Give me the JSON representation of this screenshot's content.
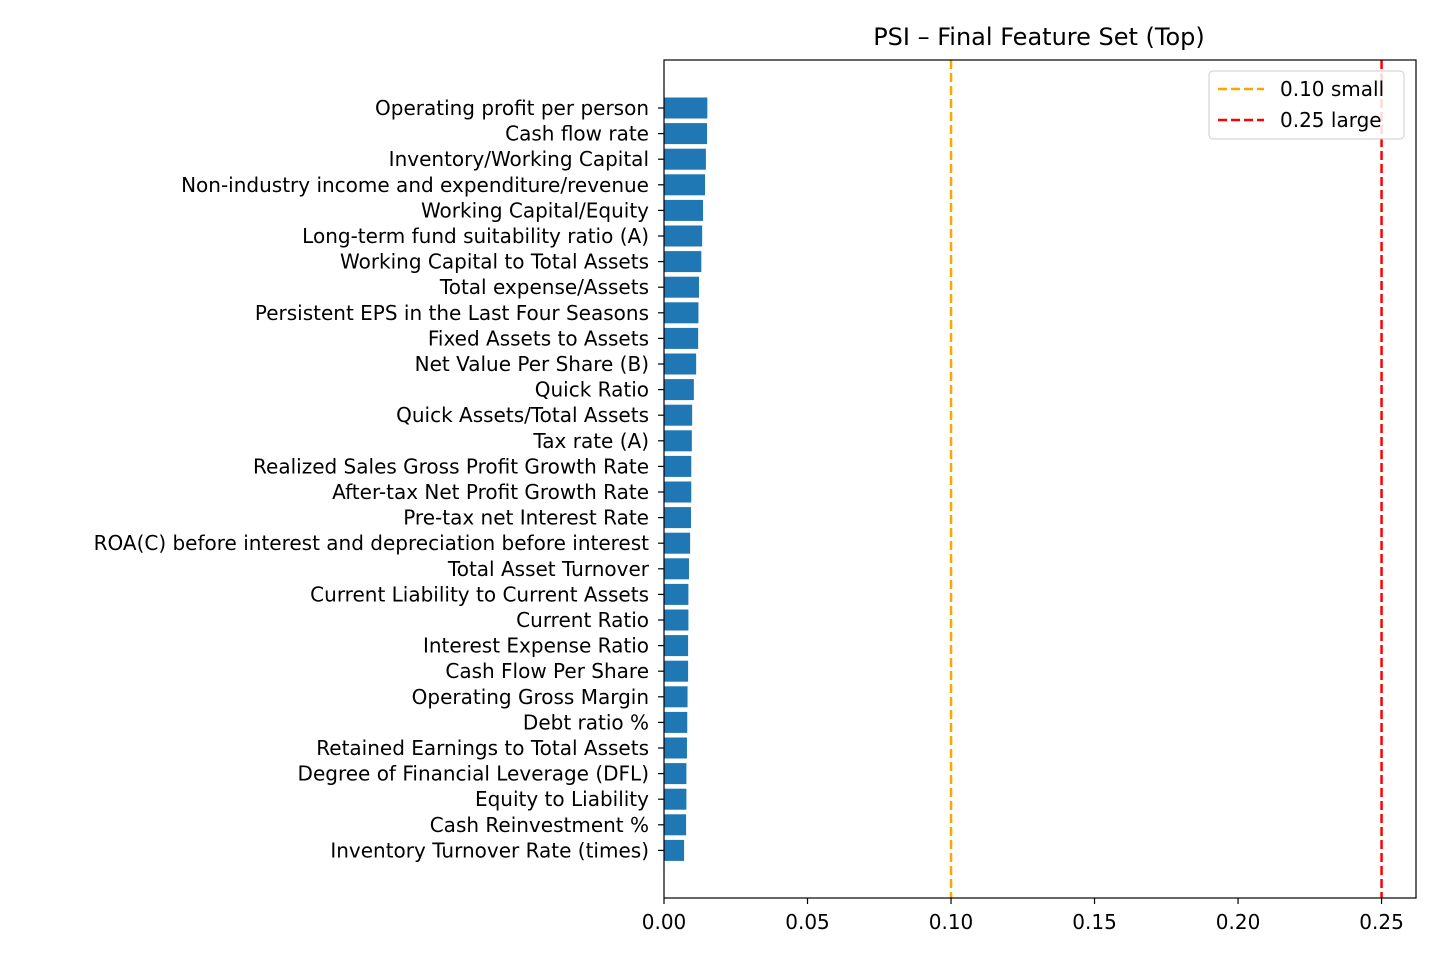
{
  "chart_data": {
    "type": "bar",
    "orientation": "horizontal",
    "title": "PSI – Final Feature Set (Top)",
    "xlabel": "",
    "ylabel": "",
    "xlim": [
      0,
      0.262
    ],
    "xticks": [
      0.0,
      0.05,
      0.1,
      0.15,
      0.2,
      0.25
    ],
    "xtick_labels": [
      "0.00",
      "0.05",
      "0.10",
      "0.15",
      "0.20",
      "0.25"
    ],
    "grid": false,
    "bar_color": "#1f77b4",
    "categories": [
      "Operating profit per person",
      "Cash flow rate",
      "Inventory/Working Capital",
      "Non-industry income and expenditure/revenue",
      "Working Capital/Equity",
      "Long-term fund suitability ratio (A)",
      "Working Capital to Total Assets",
      "Total expense/Assets",
      "Persistent EPS in the Last Four Seasons",
      "Fixed Assets to Assets",
      "Net Value Per Share (B)",
      "Quick Ratio",
      "Quick Assets/Total Assets",
      "Tax rate (A)",
      "Realized Sales Gross Profit Growth Rate",
      "After-tax Net Profit Growth Rate",
      "Pre-tax net Interest Rate",
      "ROA(C) before interest and depreciation before interest",
      "Total Asset Turnover",
      "Current Liability to Current Assets",
      "Current Ratio",
      "Interest Expense Ratio",
      "Cash Flow Per Share",
      "Operating Gross Margin",
      "Debt ratio %",
      "Retained Earnings to Total Assets",
      "Degree of Financial Leverage (DFL)",
      "Equity to Liability",
      "Cash Reinvestment %",
      "Inventory Turnover Rate (times)"
    ],
    "values": [
      0.0151,
      0.015,
      0.0146,
      0.0143,
      0.0136,
      0.0133,
      0.013,
      0.0122,
      0.012,
      0.0119,
      0.0112,
      0.0104,
      0.0098,
      0.0097,
      0.0095,
      0.0095,
      0.0094,
      0.0091,
      0.0087,
      0.0085,
      0.0085,
      0.0084,
      0.0084,
      0.0082,
      0.0081,
      0.008,
      0.0078,
      0.0078,
      0.0077,
      0.007
    ],
    "reference_lines": [
      {
        "value": 0.1,
        "label": "0.10 small",
        "color": "#ffa500"
      },
      {
        "value": 0.25,
        "label": "0.25 large",
        "color": "#ff0000"
      }
    ],
    "legend_position": "top-right"
  }
}
